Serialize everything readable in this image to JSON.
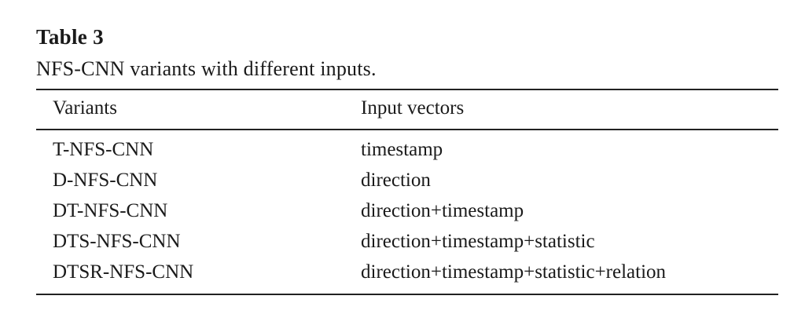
{
  "table": {
    "number": "Table 3",
    "caption": "NFS-CNN variants with different inputs.",
    "columns": [
      "Variants",
      "Input vectors"
    ],
    "rows": [
      [
        "T-NFS-CNN",
        "timestamp"
      ],
      [
        "D-NFS-CNN",
        "direction"
      ],
      [
        "DT-NFS-CNN",
        "direction+timestamp"
      ],
      [
        "DTS-NFS-CNN",
        "direction+timestamp+statistic"
      ],
      [
        "DTSR-NFS-CNN",
        "direction+timestamp+statistic+relation"
      ]
    ]
  }
}
